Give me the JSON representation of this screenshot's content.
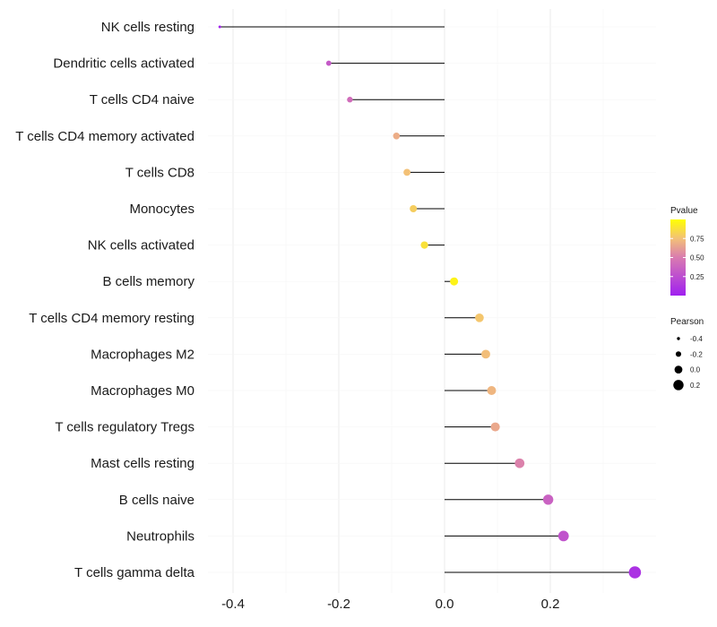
{
  "chart_data": {
    "type": "lollipop",
    "title": "",
    "xlabel": "",
    "ylabel": "",
    "xlim": [
      -0.44,
      0.37
    ],
    "x_ticks": [
      -0.4,
      -0.2,
      0.0,
      0.2
    ],
    "x_tick_labels": [
      "-0.4",
      "-0.2",
      "0.0",
      "0.2"
    ],
    "categories": [
      "NK cells resting",
      "Dendritic cells activated",
      "T cells CD4 naive",
      "T cells CD4 memory activated",
      "T cells CD8",
      "Monocytes",
      "NK cells activated",
      "B cells memory",
      "T cells CD4 memory resting",
      "Macrophages M2",
      "Macrophages M0",
      "T cells regulatory  Tregs ",
      "Mast cells resting",
      "B cells naive",
      "Neutrophils",
      "T cells gamma delta"
    ],
    "pearson": [
      -0.425,
      -0.219,
      -0.179,
      -0.091,
      -0.071,
      -0.059,
      -0.038,
      0.018,
      0.066,
      0.078,
      0.089,
      0.096,
      0.142,
      0.196,
      0.225,
      0.36
    ],
    "pvalue": [
      0.02,
      0.32,
      0.42,
      0.68,
      0.75,
      0.8,
      0.88,
      0.95,
      0.77,
      0.74,
      0.71,
      0.66,
      0.52,
      0.36,
      0.28,
      0.1
    ],
    "grid": true,
    "legend": {
      "position": "right",
      "color_title": "Pvalue",
      "color_ticks": [
        0.25,
        0.5,
        0.75
      ],
      "color_tick_labels": [
        "0.25",
        "0.50",
        "0.75"
      ],
      "color_range": [
        0.0,
        1.0
      ],
      "size_title": "Pearson",
      "size_ticks": [
        -0.4,
        -0.2,
        0.0,
        0.2
      ],
      "size_tick_labels": [
        "-0.4",
        "-0.2",
        "0.0",
        "0.2"
      ]
    },
    "colors": {
      "low": "#a020f0",
      "mid": "#d97bb0",
      "high": "#ffff00",
      "stem": "#000000",
      "grid": "#ebebeb"
    }
  }
}
